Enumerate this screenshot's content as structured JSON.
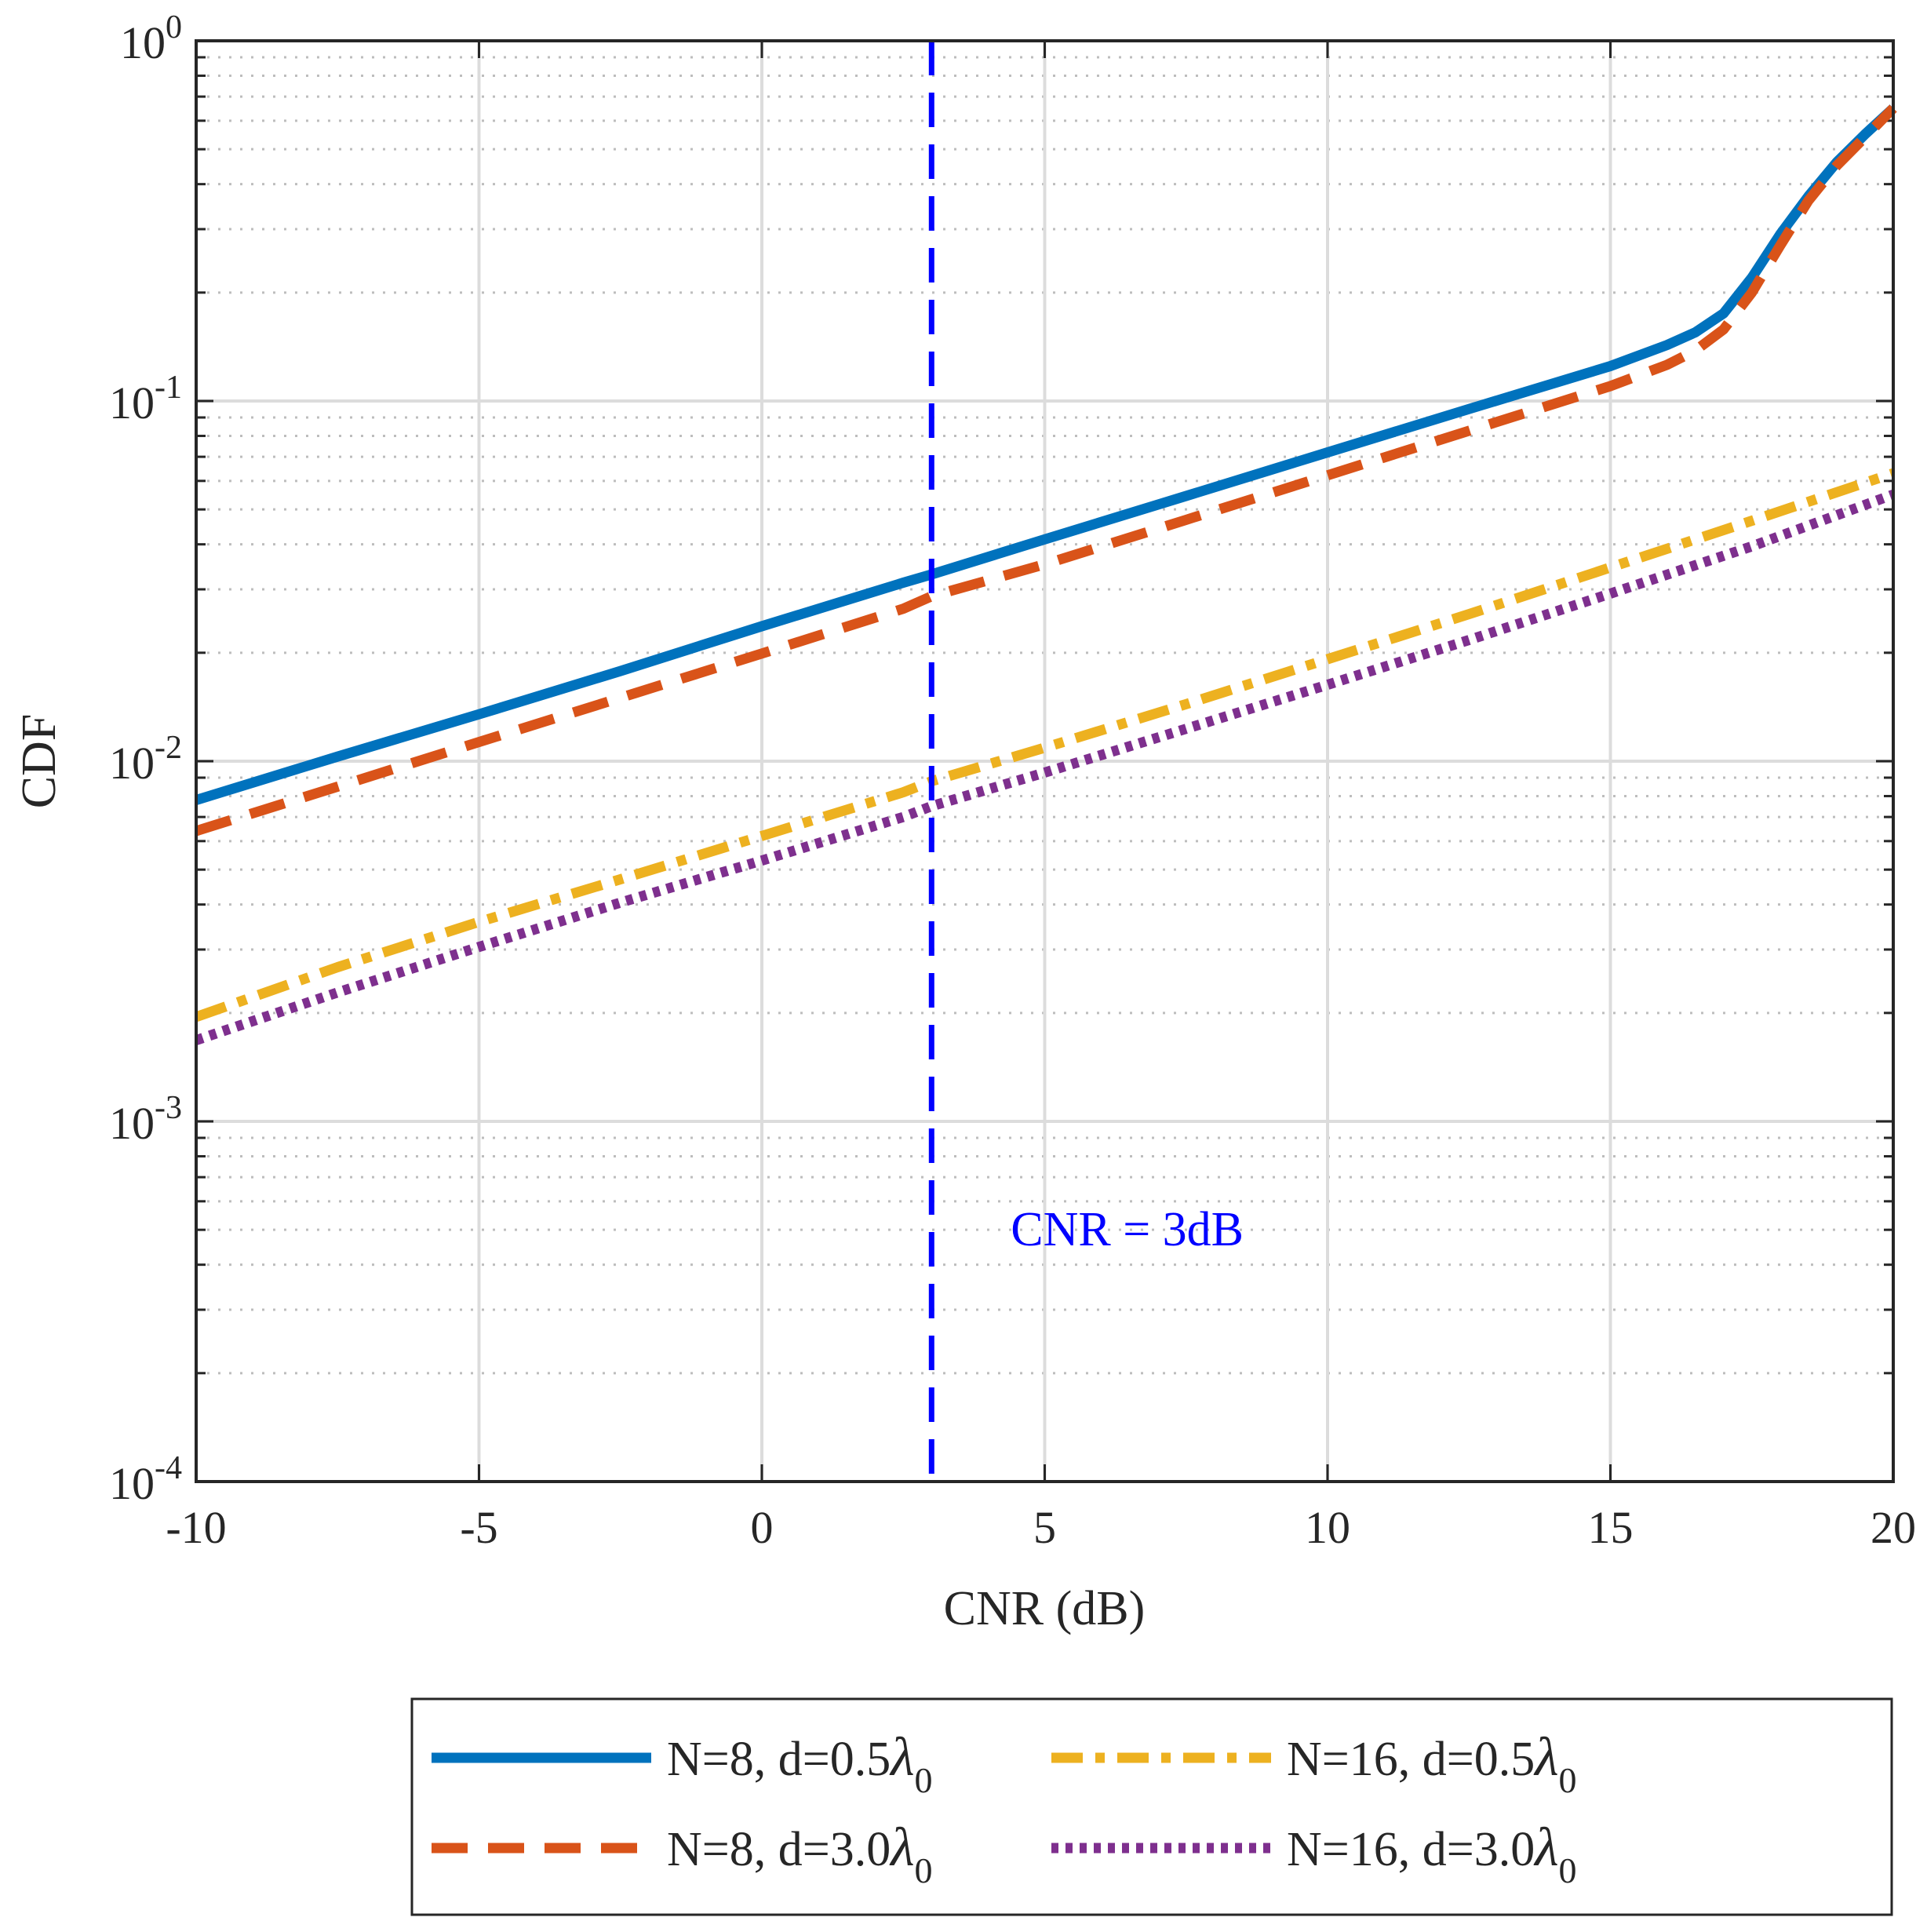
{
  "chart_data": {
    "type": "line",
    "title": "",
    "xlabel": "CNR (dB)",
    "ylabel": "CDF",
    "xscale": "linear",
    "yscale": "log",
    "xlim": [
      -10,
      20
    ],
    "ylim": [
      0.0001,
      1
    ],
    "grid": true,
    "minor_grid": true,
    "x_ticks": [
      -10,
      -5,
      0,
      5,
      10,
      15,
      20
    ],
    "x_tick_labels": [
      "-10",
      "-5",
      "0",
      "5",
      "10",
      "15",
      "20"
    ],
    "y_ticks": [
      0.0001,
      0.001,
      0.01,
      0.1,
      1
    ],
    "y_tick_labels": [
      {
        "base": "10",
        "exp": "-4"
      },
      {
        "base": "10",
        "exp": "-3"
      },
      {
        "base": "10",
        "exp": "-2"
      },
      {
        "base": "10",
        "exp": "-1"
      },
      {
        "base": "10",
        "exp": "0"
      }
    ],
    "legend_position": "bottom-outside",
    "series": [
      {
        "name": "N=8, d=0.5λ0",
        "label_main": "N=8, d=0.5",
        "label_symbol": "λ",
        "label_sub": "0",
        "color": "#0072BD",
        "style": "solid",
        "x": [
          -10,
          -7.5,
          -5,
          -2.5,
          0,
          2.5,
          3,
          5,
          7.5,
          10,
          12.5,
          15,
          16,
          16.5,
          17,
          17.5,
          18,
          18.5,
          19,
          19.5,
          20
        ],
        "y": [
          0.0078,
          0.0103,
          0.0135,
          0.0178,
          0.0237,
          0.0313,
          0.033,
          0.0413,
          0.0545,
          0.072,
          0.095,
          0.125,
          0.143,
          0.155,
          0.175,
          0.22,
          0.29,
          0.37,
          0.46,
          0.55,
          0.65
        ]
      },
      {
        "name": "N=8, d=3.0λ0",
        "label_main": "N=8, d=3.0",
        "label_symbol": "λ",
        "label_sub": "0",
        "color": "#D95319",
        "style": "dashed",
        "x": [
          -10,
          -7.5,
          -5,
          -2.5,
          0,
          2.5,
          3,
          5,
          7.5,
          10,
          12.5,
          15,
          16,
          16.5,
          17,
          17.5,
          18,
          18.5,
          19,
          19.5,
          20
        ],
        "y": [
          0.0064,
          0.0085,
          0.0113,
          0.015,
          0.0199,
          0.0265,
          0.0287,
          0.0352,
          0.0468,
          0.0622,
          0.0827,
          0.11,
          0.126,
          0.138,
          0.158,
          0.2,
          0.27,
          0.36,
          0.45,
          0.54,
          0.65
        ]
      },
      {
        "name": "N=16, d=0.5λ0",
        "label_main": "N=16, d=0.5",
        "label_symbol": "λ",
        "label_sub": "0",
        "color": "#EDB120",
        "style": "dashdot",
        "x": [
          -10,
          -7.5,
          -5,
          -2.5,
          0,
          2.5,
          3,
          5,
          7.5,
          10,
          12.5,
          15,
          17.5,
          20
        ],
        "y": [
          0.00195,
          0.00268,
          0.00358,
          0.0047,
          0.0062,
          0.0082,
          0.0088,
          0.0109,
          0.0144,
          0.0192,
          0.0256,
          0.0345,
          0.0465,
          0.063
        ]
      },
      {
        "name": "N=16, d=3.0λ0",
        "label_main": "N=16, d=3.0",
        "label_symbol": "λ",
        "label_sub": "0",
        "color": "#7E2F8E",
        "style": "dotted",
        "x": [
          -10,
          -7.5,
          -5,
          -2.5,
          0,
          2.5,
          3,
          5,
          7.5,
          10,
          12.5,
          15,
          17.5,
          20
        ],
        "y": [
          0.00168,
          0.00228,
          0.00305,
          0.00405,
          0.0053,
          0.007,
          0.0075,
          0.0093,
          0.0123,
          0.0163,
          0.0217,
          0.0292,
          0.0395,
          0.055
        ]
      }
    ],
    "vertical_line": {
      "x": 3,
      "color": "#0000FF",
      "style": "dashed"
    },
    "annotation": {
      "text": "CNR = 3dB",
      "x": 4.4,
      "y": 0.0005,
      "color": "#0000FF"
    }
  }
}
